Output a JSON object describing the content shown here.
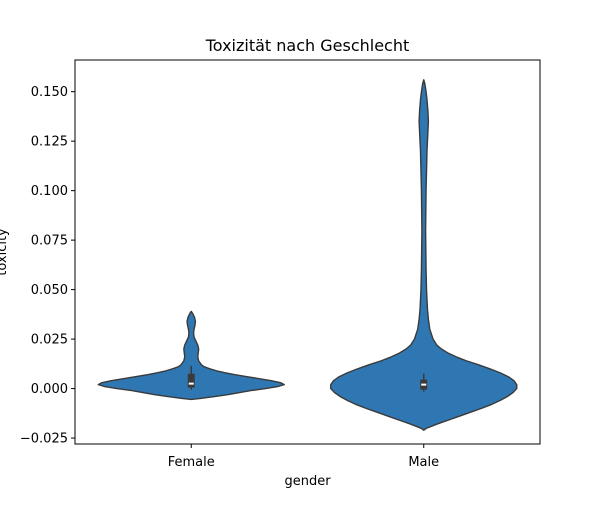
{
  "chart_data": {
    "type": "violin",
    "title": "Toxizität nach Geschlecht",
    "xlabel": "gender",
    "ylabel": "toxicity",
    "categories": [
      "Female",
      "Male"
    ],
    "ylim": [
      -0.028,
      0.166
    ],
    "yticks": [
      -0.025,
      0.0,
      0.025,
      0.05,
      0.075,
      0.1,
      0.125,
      0.15
    ],
    "ytick_labels": [
      "−0.025",
      "0.000",
      "0.025",
      "0.050",
      "0.075",
      "0.100",
      "0.125",
      "0.150"
    ],
    "grid": false,
    "colors": {
      "fill": "#2f77b2",
      "edge": "#3a3a3a",
      "box": "#3a3a3a",
      "median": "#ffffff"
    },
    "violins": [
      {
        "category": "Female",
        "min": -0.0055,
        "max": 0.039,
        "median": 0.0025,
        "q1": 0.0005,
        "q3": 0.0075,
        "whisker_low": -0.0005,
        "whisker_high": 0.0115,
        "density": [
          [
            -0.0055,
            0.0
          ],
          [
            -0.005,
            0.1
          ],
          [
            -0.004,
            0.26
          ],
          [
            -0.003,
            0.4
          ],
          [
            -0.002,
            0.52
          ],
          [
            -0.001,
            0.64
          ],
          [
            0.0,
            0.8
          ],
          [
            0.001,
            0.93
          ],
          [
            0.002,
            1.0
          ],
          [
            0.003,
            0.96
          ],
          [
            0.004,
            0.86
          ],
          [
            0.005,
            0.73
          ],
          [
            0.006,
            0.6
          ],
          [
            0.007,
            0.47
          ],
          [
            0.008,
            0.36
          ],
          [
            0.009,
            0.27
          ],
          [
            0.01,
            0.2
          ],
          [
            0.011,
            0.14
          ],
          [
            0.012,
            0.11
          ],
          [
            0.014,
            0.08
          ],
          [
            0.016,
            0.07
          ],
          [
            0.018,
            0.075
          ],
          [
            0.02,
            0.08
          ],
          [
            0.022,
            0.07
          ],
          [
            0.024,
            0.05
          ],
          [
            0.026,
            0.03
          ],
          [
            0.028,
            0.025
          ],
          [
            0.03,
            0.03
          ],
          [
            0.032,
            0.04
          ],
          [
            0.034,
            0.045
          ],
          [
            0.036,
            0.035
          ],
          [
            0.038,
            0.015
          ],
          [
            0.039,
            0.0
          ]
        ]
      },
      {
        "category": "Male",
        "min": -0.021,
        "max": 0.156,
        "median": 0.002,
        "q1": -0.0005,
        "q3": 0.0045,
        "whisker_low": -0.0015,
        "whisker_high": 0.0075,
        "density": [
          [
            -0.021,
            0.0
          ],
          [
            -0.02,
            0.03
          ],
          [
            -0.018,
            0.14
          ],
          [
            -0.016,
            0.26
          ],
          [
            -0.014,
            0.38
          ],
          [
            -0.012,
            0.5
          ],
          [
            -0.01,
            0.62
          ],
          [
            -0.008,
            0.73
          ],
          [
            -0.006,
            0.82
          ],
          [
            -0.004,
            0.9
          ],
          [
            -0.002,
            0.96
          ],
          [
            0.0,
            1.0
          ],
          [
            0.002,
            1.0
          ],
          [
            0.004,
            0.97
          ],
          [
            0.006,
            0.91
          ],
          [
            0.008,
            0.82
          ],
          [
            0.01,
            0.71
          ],
          [
            0.012,
            0.59
          ],
          [
            0.014,
            0.46
          ],
          [
            0.016,
            0.35
          ],
          [
            0.018,
            0.26
          ],
          [
            0.02,
            0.19
          ],
          [
            0.022,
            0.14
          ],
          [
            0.025,
            0.1
          ],
          [
            0.03,
            0.065
          ],
          [
            0.035,
            0.05
          ],
          [
            0.04,
            0.04
          ],
          [
            0.045,
            0.035
          ],
          [
            0.05,
            0.03
          ],
          [
            0.06,
            0.025
          ],
          [
            0.08,
            0.02
          ],
          [
            0.1,
            0.025
          ],
          [
            0.12,
            0.035
          ],
          [
            0.13,
            0.045
          ],
          [
            0.135,
            0.05
          ],
          [
            0.14,
            0.045
          ],
          [
            0.146,
            0.035
          ],
          [
            0.15,
            0.025
          ],
          [
            0.154,
            0.012
          ],
          [
            0.156,
            0.0
          ]
        ]
      }
    ]
  }
}
